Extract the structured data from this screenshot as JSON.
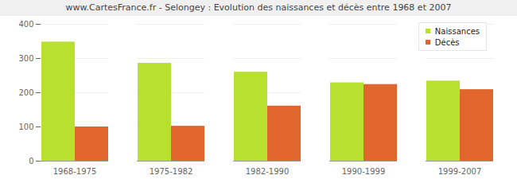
{
  "chart_data": {
    "type": "bar",
    "title": "www.CartesFrance.fr - Selongey : Evolution des naissances et décès entre 1968 et 2007",
    "categories": [
      "1968-1975",
      "1975-1982",
      "1982-1990",
      "1990-1999",
      "1999-2007"
    ],
    "series": [
      {
        "name": "Naissances",
        "color": "#b8e02e",
        "values": [
          348,
          286,
          260,
          229,
          234
        ]
      },
      {
        "name": "Décès",
        "color": "#e0662e",
        "values": [
          100,
          102,
          161,
          224,
          209
        ]
      }
    ],
    "ylim": [
      0,
      400
    ],
    "yticks": [
      0,
      100,
      200,
      300,
      400
    ],
    "grid": true,
    "legend": "top-right"
  }
}
